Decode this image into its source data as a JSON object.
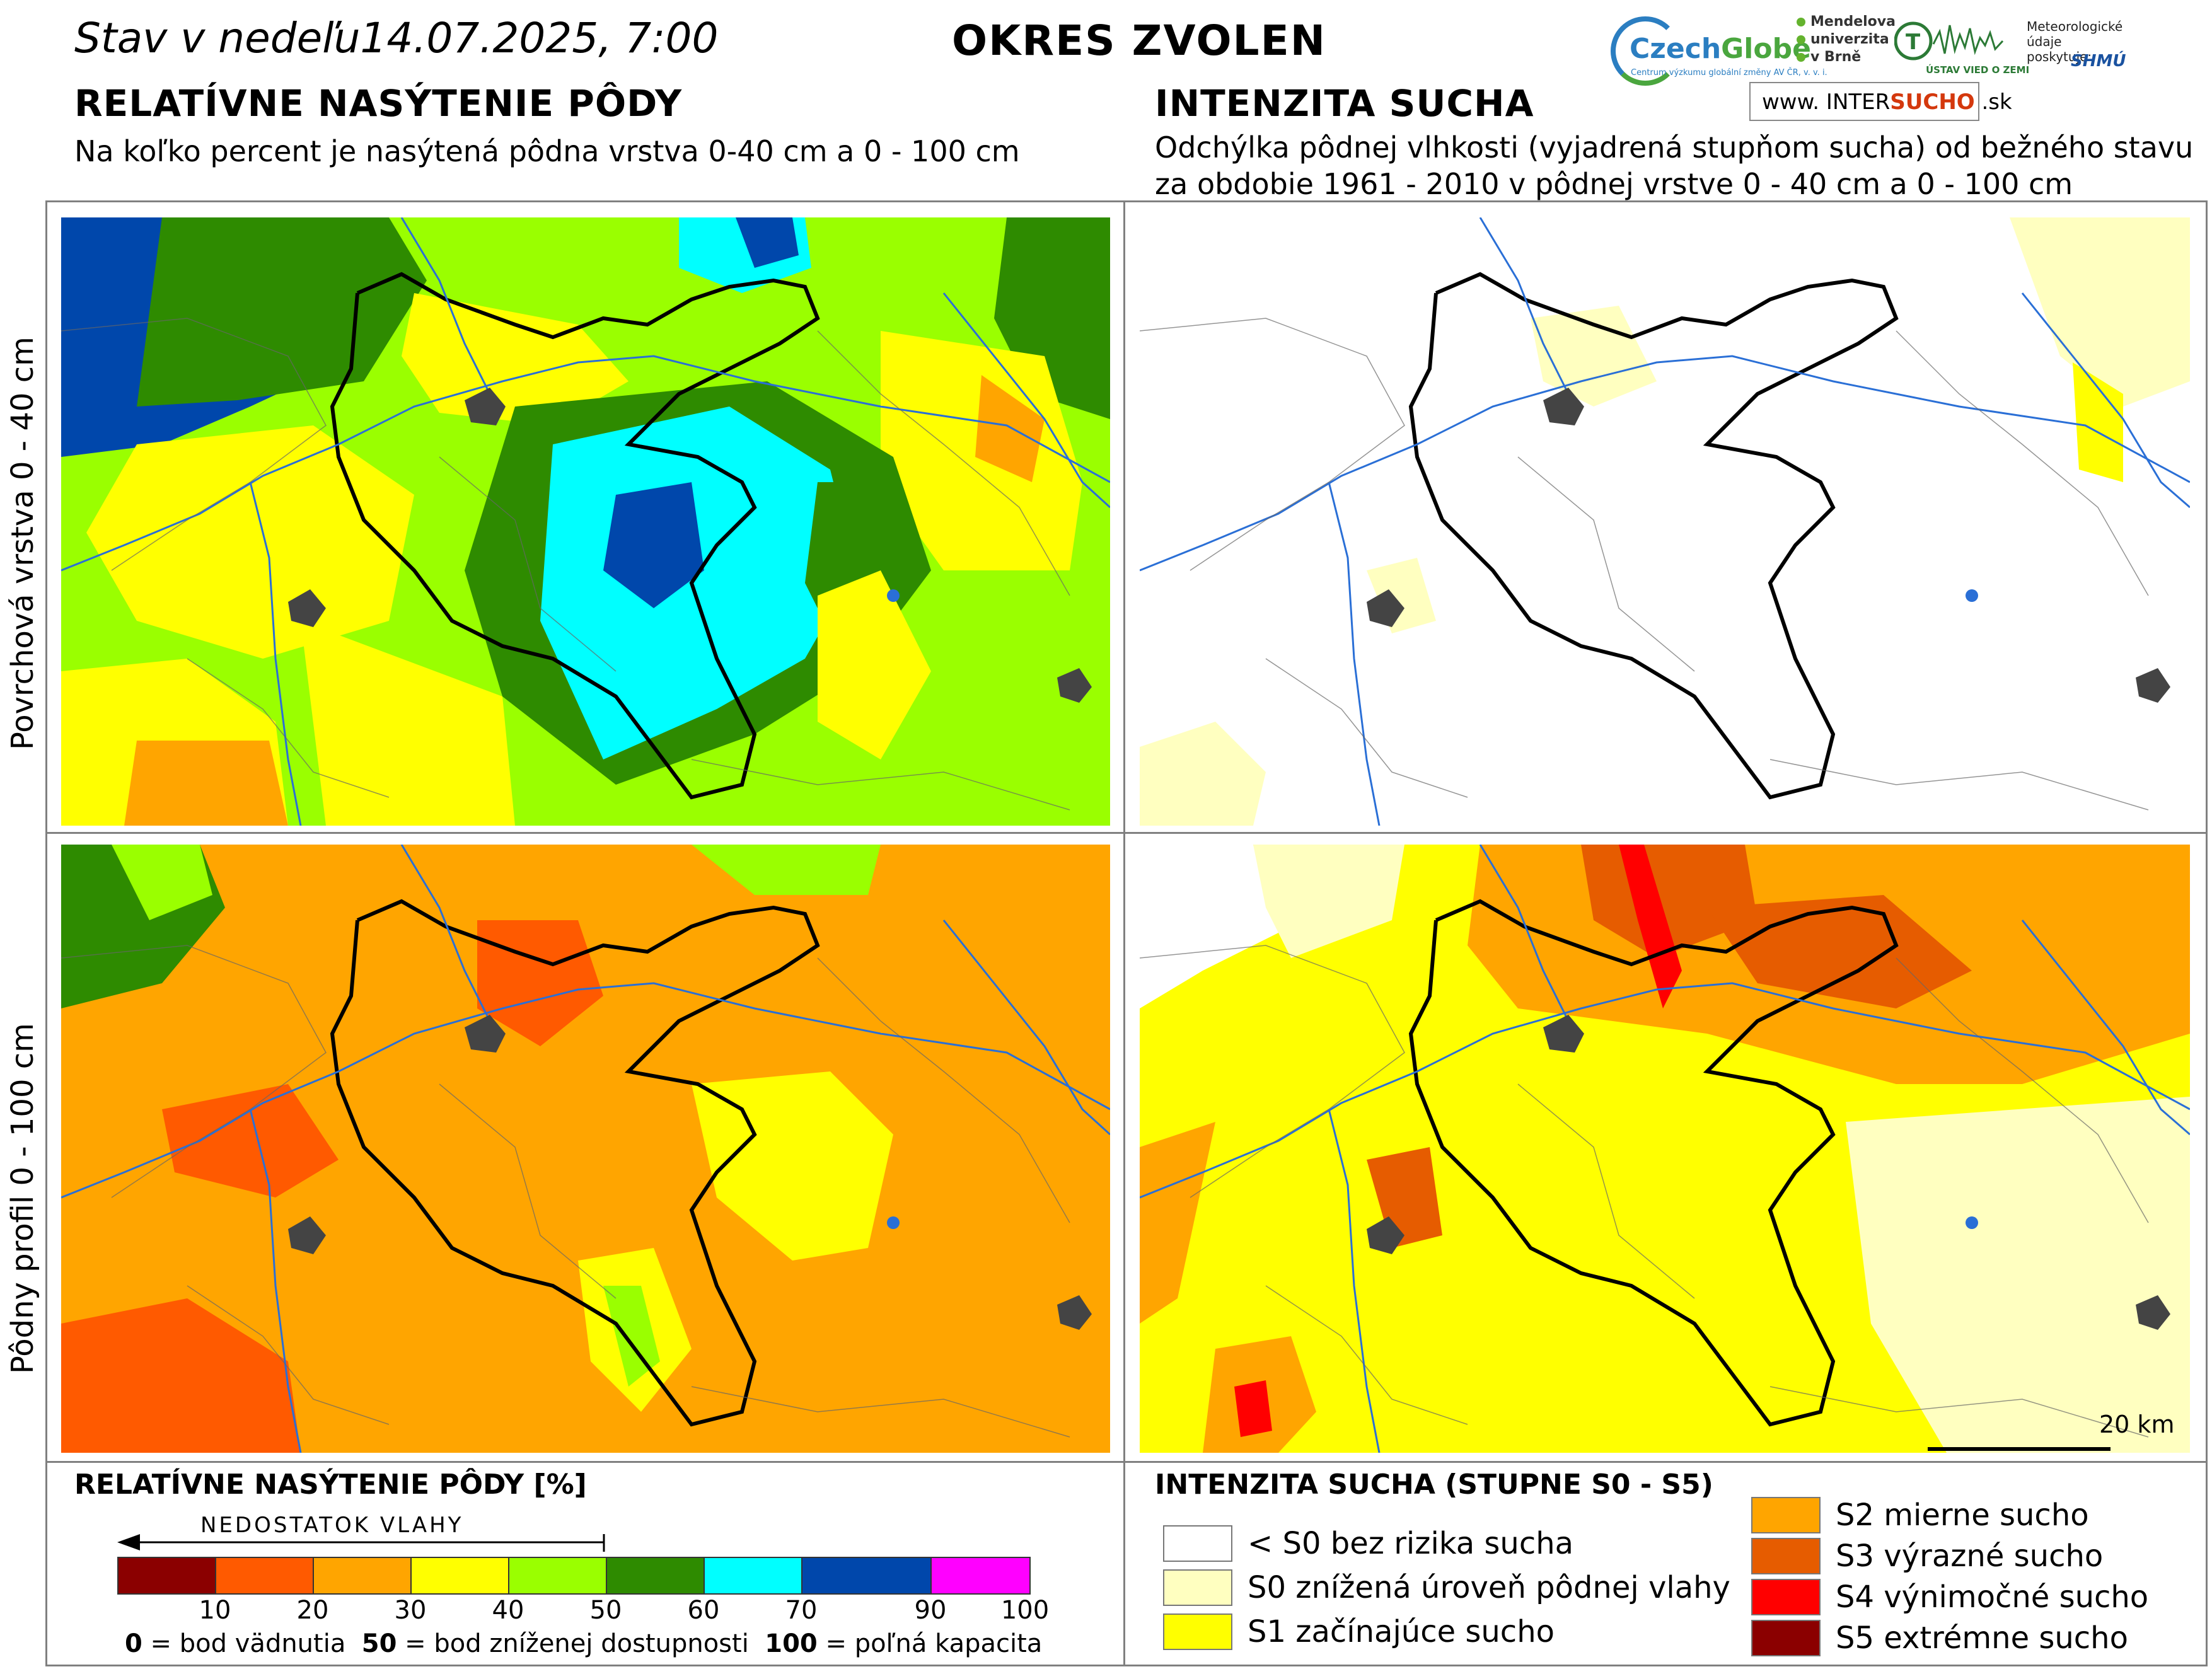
{
  "header": {
    "date_label": "Stav v nedeľu14.07.2025, 7:00",
    "district": "OKRES ZVOLEN"
  },
  "logos": {
    "czechglobe_a": "Czech",
    "czechglobe_b": "Globe",
    "czechglobe_tag": "Centrum výzkumu globální změny AV ČR, v. v. i.",
    "mendel_lines": [
      "Mendelova",
      "univerzita",
      "v Brně"
    ],
    "ustav": "ÚSTAV VIED O ZEMI",
    "meteo_lines": [
      "Meteorologické",
      "údaje",
      "poskytuje:"
    ],
    "shmu": "SHMÚ",
    "www_prefix": "www. INTER",
    "www_bold": "SUCHO",
    "www_suffix": " .sk"
  },
  "left_section": {
    "title": "RELATÍVNE NASÝTENIE PÔDY",
    "subtitle": "Na koľko percent je nasýtená pôdna vrstva 0-40 cm a 0 - 100 cm"
  },
  "right_section": {
    "title": "INTENZITA SUCHA",
    "subtitle_line1": "Odchýlka pôdnej vlhkosti (vyjadrená stupňom sucha) od bežného stavu",
    "subtitle_line2": "za obdobie 1961 - 2010 v pôdnej vrstve 0 - 40 cm a 0 - 100 cm"
  },
  "row_labels": {
    "top": "Povrchová vrstva 0 - 40 cm",
    "bottom": "Pôdny profil 0 - 100 cm"
  },
  "scalebar": {
    "label": "20 km"
  },
  "saturation_legend": {
    "title": "RELATÍVNE NASÝTENIE PÔDY [%]",
    "deficit_label": "NEDOSTATOK VLAHY",
    "ticks": [
      "10",
      "20",
      "30",
      "40",
      "50",
      "60",
      "70",
      "90",
      "100"
    ],
    "note_0": "0",
    "note_0_text": " = bod vädnutia  ",
    "note_50": "50",
    "note_50_text": " = bod zníženej dostupnosti  ",
    "note_100": "100",
    "note_100_text": " = poľná kapacita",
    "classes": [
      {
        "range": "0-10",
        "color": "#8b0000"
      },
      {
        "range": "10-20",
        "color": "#ff5a00"
      },
      {
        "range": "20-30",
        "color": "#ffa500"
      },
      {
        "range": "30-40",
        "color": "#ffff00"
      },
      {
        "range": "40-50",
        "color": "#9aff00"
      },
      {
        "range": "50-60",
        "color": "#2e8b00"
      },
      {
        "range": "60-70",
        "color": "#00ffff"
      },
      {
        "range": "70-90",
        "color": "#0047ab"
      },
      {
        "range": "90-100",
        "color": "#ff00ff"
      }
    ]
  },
  "drought_legend": {
    "title": "INTENZITA SUCHA (STUPNE S0 - S5)",
    "items": [
      {
        "label": "< S0 bez rizika sucha",
        "color": "#ffffff"
      },
      {
        "label": "S0 znížená úroveň pôdnej vlahy",
        "color": "#ffffc0"
      },
      {
        "label": "S1 začínajúce sucho",
        "color": "#ffff00"
      },
      {
        "label": "S2 mierne sucho",
        "color": "#ffa500"
      },
      {
        "label": "S3 výrazné sucho",
        "color": "#e65c00"
      },
      {
        "label": "S4 výnimočné sucho",
        "color": "#ff0000"
      },
      {
        "label": "S5 extrémne sucho",
        "color": "#8b0000"
      }
    ]
  }
}
